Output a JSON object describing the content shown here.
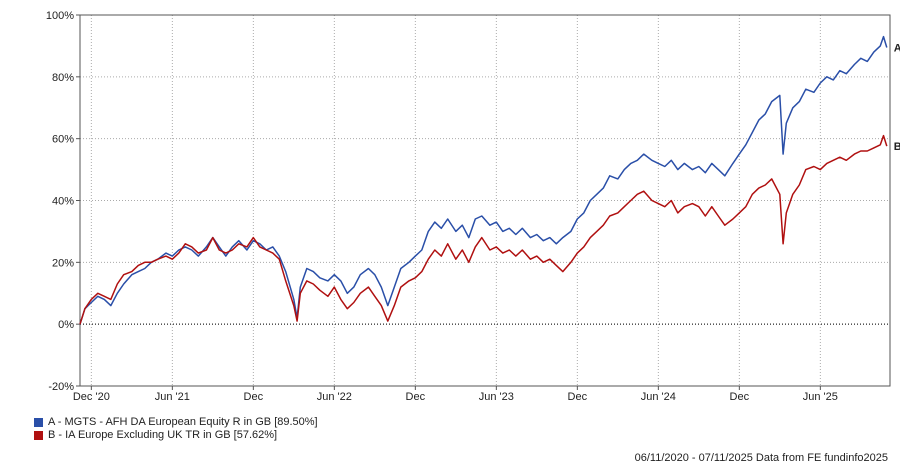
{
  "chart_data": {
    "type": "line",
    "ylabel": "",
    "xlabel": "",
    "ylim": [
      -20,
      100
    ],
    "y_ticks": [
      "100%",
      "80%",
      "60%",
      "40%",
      "20%",
      "0%",
      "-20%"
    ],
    "y_tick_values": [
      100,
      80,
      60,
      40,
      20,
      0,
      -20
    ],
    "x_ticks": [
      "Dec '20",
      "Jun '21",
      "Dec",
      "Jun '22",
      "Dec",
      "Jun '23",
      "Dec",
      "Jun '24",
      "Dec",
      "Jun '25"
    ],
    "x_tick_values": [
      2020.92,
      2021.42,
      2021.92,
      2022.42,
      2022.92,
      2023.42,
      2023.92,
      2024.42,
      2024.92,
      2025.42
    ],
    "x_range": [
      2020.85,
      2025.85
    ],
    "zero_line": true,
    "grid": "vertical-and-horizontal dotted",
    "series": [
      {
        "name": "A",
        "color": "#2a4fa8",
        "end_label": "A",
        "values": [
          [
            2020.85,
            0
          ],
          [
            2020.88,
            5
          ],
          [
            2020.92,
            7
          ],
          [
            2020.96,
            9
          ],
          [
            2021.0,
            8
          ],
          [
            2021.04,
            6
          ],
          [
            2021.08,
            10
          ],
          [
            2021.12,
            13
          ],
          [
            2021.17,
            16
          ],
          [
            2021.21,
            17
          ],
          [
            2021.25,
            18
          ],
          [
            2021.29,
            20
          ],
          [
            2021.33,
            21
          ],
          [
            2021.38,
            23
          ],
          [
            2021.42,
            22
          ],
          [
            2021.46,
            24
          ],
          [
            2021.5,
            25
          ],
          [
            2021.54,
            24
          ],
          [
            2021.58,
            22
          ],
          [
            2021.63,
            25
          ],
          [
            2021.67,
            28
          ],
          [
            2021.71,
            25
          ],
          [
            2021.75,
            22
          ],
          [
            2021.79,
            25
          ],
          [
            2021.83,
            27
          ],
          [
            2021.88,
            24
          ],
          [
            2021.92,
            27
          ],
          [
            2021.96,
            26
          ],
          [
            2022.0,
            24
          ],
          [
            2022.04,
            25
          ],
          [
            2022.08,
            22
          ],
          [
            2022.12,
            17
          ],
          [
            2022.17,
            8
          ],
          [
            2022.19,
            2
          ],
          [
            2022.21,
            12
          ],
          [
            2022.25,
            18
          ],
          [
            2022.29,
            17
          ],
          [
            2022.33,
            15
          ],
          [
            2022.38,
            14
          ],
          [
            2022.42,
            16
          ],
          [
            2022.46,
            14
          ],
          [
            2022.5,
            10
          ],
          [
            2022.54,
            12
          ],
          [
            2022.58,
            16
          ],
          [
            2022.63,
            18
          ],
          [
            2022.67,
            16
          ],
          [
            2022.71,
            12
          ],
          [
            2022.75,
            6
          ],
          [
            2022.79,
            12
          ],
          [
            2022.83,
            18
          ],
          [
            2022.88,
            20
          ],
          [
            2022.92,
            22
          ],
          [
            2022.96,
            24
          ],
          [
            2023.0,
            30
          ],
          [
            2023.04,
            33
          ],
          [
            2023.08,
            31
          ],
          [
            2023.12,
            34
          ],
          [
            2023.17,
            30
          ],
          [
            2023.21,
            32
          ],
          [
            2023.25,
            28
          ],
          [
            2023.29,
            34
          ],
          [
            2023.33,
            35
          ],
          [
            2023.38,
            32
          ],
          [
            2023.42,
            33
          ],
          [
            2023.46,
            30
          ],
          [
            2023.5,
            31
          ],
          [
            2023.54,
            29
          ],
          [
            2023.58,
            31
          ],
          [
            2023.63,
            28
          ],
          [
            2023.67,
            29
          ],
          [
            2023.71,
            27
          ],
          [
            2023.75,
            28
          ],
          [
            2023.79,
            26
          ],
          [
            2023.83,
            28
          ],
          [
            2023.88,
            30
          ],
          [
            2023.92,
            34
          ],
          [
            2023.96,
            36
          ],
          [
            2024.0,
            40
          ],
          [
            2024.04,
            42
          ],
          [
            2024.08,
            44
          ],
          [
            2024.12,
            48
          ],
          [
            2024.17,
            47
          ],
          [
            2024.21,
            50
          ],
          [
            2024.25,
            52
          ],
          [
            2024.29,
            53
          ],
          [
            2024.33,
            55
          ],
          [
            2024.38,
            53
          ],
          [
            2024.42,
            52
          ],
          [
            2024.46,
            51
          ],
          [
            2024.5,
            53
          ],
          [
            2024.54,
            50
          ],
          [
            2024.58,
            52
          ],
          [
            2024.63,
            50
          ],
          [
            2024.67,
            51
          ],
          [
            2024.71,
            49
          ],
          [
            2024.75,
            52
          ],
          [
            2024.79,
            50
          ],
          [
            2024.83,
            48
          ],
          [
            2024.88,
            52
          ],
          [
            2024.92,
            55
          ],
          [
            2024.96,
            58
          ],
          [
            2025.0,
            62
          ],
          [
            2025.04,
            66
          ],
          [
            2025.08,
            68
          ],
          [
            2025.12,
            72
          ],
          [
            2025.17,
            74
          ],
          [
            2025.19,
            55
          ],
          [
            2025.21,
            65
          ],
          [
            2025.25,
            70
          ],
          [
            2025.29,
            72
          ],
          [
            2025.33,
            76
          ],
          [
            2025.38,
            75
          ],
          [
            2025.42,
            78
          ],
          [
            2025.46,
            80
          ],
          [
            2025.5,
            79
          ],
          [
            2025.54,
            82
          ],
          [
            2025.58,
            81
          ],
          [
            2025.63,
            84
          ],
          [
            2025.67,
            86
          ],
          [
            2025.71,
            85
          ],
          [
            2025.75,
            88
          ],
          [
            2025.79,
            90
          ],
          [
            2025.81,
            93
          ],
          [
            2025.83,
            89.5
          ]
        ]
      },
      {
        "name": "B",
        "color": "#b01010",
        "end_label": "B",
        "values": [
          [
            2020.85,
            0
          ],
          [
            2020.88,
            5
          ],
          [
            2020.92,
            8
          ],
          [
            2020.96,
            10
          ],
          [
            2021.0,
            9
          ],
          [
            2021.04,
            8
          ],
          [
            2021.08,
            13
          ],
          [
            2021.12,
            16
          ],
          [
            2021.17,
            17
          ],
          [
            2021.21,
            19
          ],
          [
            2021.25,
            20
          ],
          [
            2021.29,
            20
          ],
          [
            2021.33,
            21
          ],
          [
            2021.38,
            22
          ],
          [
            2021.42,
            21
          ],
          [
            2021.46,
            23
          ],
          [
            2021.5,
            26
          ],
          [
            2021.54,
            25
          ],
          [
            2021.58,
            23
          ],
          [
            2021.63,
            24
          ],
          [
            2021.67,
            28
          ],
          [
            2021.71,
            24
          ],
          [
            2021.75,
            23
          ],
          [
            2021.79,
            24
          ],
          [
            2021.83,
            26
          ],
          [
            2021.88,
            25
          ],
          [
            2021.92,
            28
          ],
          [
            2021.96,
            25
          ],
          [
            2022.0,
            24
          ],
          [
            2022.04,
            23
          ],
          [
            2022.08,
            21
          ],
          [
            2022.12,
            14
          ],
          [
            2022.17,
            6
          ],
          [
            2022.19,
            1
          ],
          [
            2022.21,
            10
          ],
          [
            2022.25,
            14
          ],
          [
            2022.29,
            13
          ],
          [
            2022.33,
            11
          ],
          [
            2022.38,
            9
          ],
          [
            2022.42,
            12
          ],
          [
            2022.46,
            8
          ],
          [
            2022.5,
            5
          ],
          [
            2022.54,
            7
          ],
          [
            2022.58,
            10
          ],
          [
            2022.63,
            12
          ],
          [
            2022.67,
            9
          ],
          [
            2022.71,
            6
          ],
          [
            2022.75,
            1
          ],
          [
            2022.79,
            6
          ],
          [
            2022.83,
            12
          ],
          [
            2022.88,
            14
          ],
          [
            2022.92,
            15
          ],
          [
            2022.96,
            17
          ],
          [
            2023.0,
            21
          ],
          [
            2023.04,
            24
          ],
          [
            2023.08,
            22
          ],
          [
            2023.12,
            26
          ],
          [
            2023.17,
            21
          ],
          [
            2023.21,
            24
          ],
          [
            2023.25,
            20
          ],
          [
            2023.29,
            25
          ],
          [
            2023.33,
            28
          ],
          [
            2023.38,
            24
          ],
          [
            2023.42,
            25
          ],
          [
            2023.46,
            23
          ],
          [
            2023.5,
            24
          ],
          [
            2023.54,
            22
          ],
          [
            2023.58,
            24
          ],
          [
            2023.63,
            21
          ],
          [
            2023.67,
            22
          ],
          [
            2023.71,
            20
          ],
          [
            2023.75,
            21
          ],
          [
            2023.79,
            19
          ],
          [
            2023.83,
            17
          ],
          [
            2023.88,
            20
          ],
          [
            2023.92,
            23
          ],
          [
            2023.96,
            25
          ],
          [
            2024.0,
            28
          ],
          [
            2024.04,
            30
          ],
          [
            2024.08,
            32
          ],
          [
            2024.12,
            35
          ],
          [
            2024.17,
            36
          ],
          [
            2024.21,
            38
          ],
          [
            2024.25,
            40
          ],
          [
            2024.29,
            42
          ],
          [
            2024.33,
            43
          ],
          [
            2024.38,
            40
          ],
          [
            2024.42,
            39
          ],
          [
            2024.46,
            38
          ],
          [
            2024.5,
            40
          ],
          [
            2024.54,
            36
          ],
          [
            2024.58,
            38
          ],
          [
            2024.63,
            39
          ],
          [
            2024.67,
            38
          ],
          [
            2024.71,
            35
          ],
          [
            2024.75,
            38
          ],
          [
            2024.79,
            35
          ],
          [
            2024.83,
            32
          ],
          [
            2024.88,
            34
          ],
          [
            2024.92,
            36
          ],
          [
            2024.96,
            38
          ],
          [
            2025.0,
            42
          ],
          [
            2025.04,
            44
          ],
          [
            2025.08,
            45
          ],
          [
            2025.12,
            47
          ],
          [
            2025.17,
            42
          ],
          [
            2025.19,
            26
          ],
          [
            2025.21,
            36
          ],
          [
            2025.25,
            42
          ],
          [
            2025.29,
            45
          ],
          [
            2025.33,
            50
          ],
          [
            2025.38,
            51
          ],
          [
            2025.42,
            50
          ],
          [
            2025.46,
            52
          ],
          [
            2025.5,
            53
          ],
          [
            2025.54,
            54
          ],
          [
            2025.58,
            53
          ],
          [
            2025.63,
            55
          ],
          [
            2025.67,
            56
          ],
          [
            2025.71,
            56
          ],
          [
            2025.75,
            57
          ],
          [
            2025.79,
            58
          ],
          [
            2025.81,
            61
          ],
          [
            2025.83,
            57.6
          ]
        ]
      }
    ],
    "legend": [
      {
        "label": "A - MGTS - AFH DA European Equity R in GB [89.50%]",
        "color": "#2a4fa8"
      },
      {
        "label": "B - IA Europe Excluding UK TR in GB [57.62%]",
        "color": "#b01010"
      }
    ],
    "legend_position": "bottom-left",
    "footer": "06/11/2020 - 07/11/2025 Data from FE fundinfo2025"
  }
}
